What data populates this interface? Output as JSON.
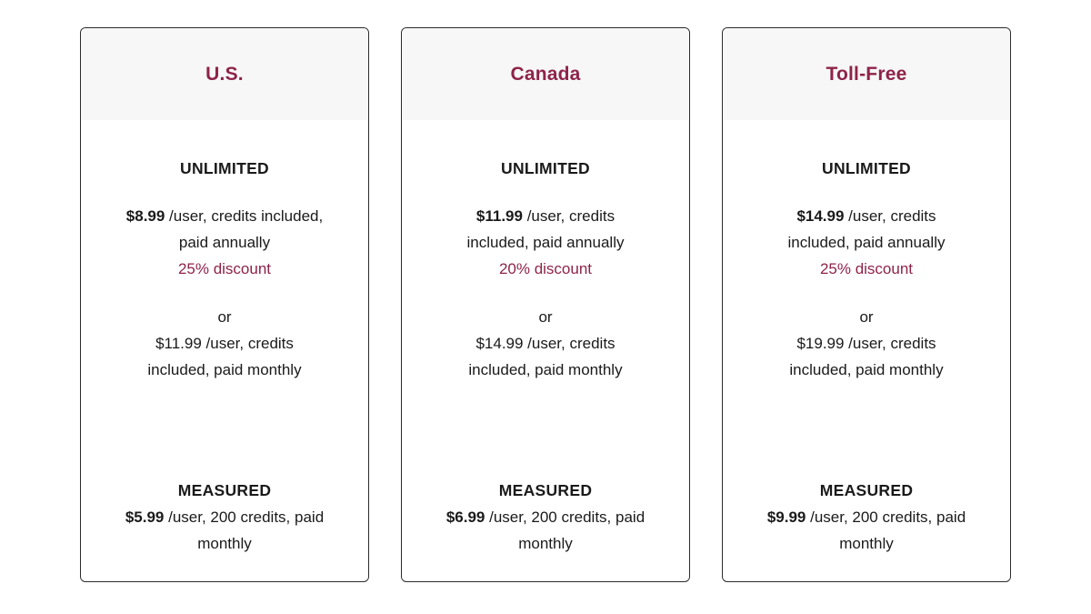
{
  "colors": {
    "accent": "#8e2349",
    "header_bg": "#f7f7f7",
    "card_border": "#2b2b2b",
    "text": "#1a1a1a"
  },
  "cards": [
    {
      "title": "U.S.",
      "unlimited_label": "UNLIMITED",
      "annual_price": "$8.99",
      "annual_text": " /user, credits included,\npaid annually",
      "discount": "25% discount",
      "or_label": "or",
      "monthly_text": "$11.99 /user, credits\nincluded, paid monthly",
      "measured_label": "MEASURED",
      "measured_price": "$5.99",
      "measured_text": " /user, 200 credits, paid\nmonthly"
    },
    {
      "title": "Canada",
      "unlimited_label": "UNLIMITED",
      "annual_price": "$11.99",
      "annual_text": " /user, credits\nincluded, paid annually",
      "discount": "20% discount",
      "or_label": "or",
      "monthly_text": "$14.99 /user, credits\nincluded, paid monthly",
      "measured_label": "MEASURED",
      "measured_price": "$6.99",
      "measured_text": " /user, 200 credits, paid\nmonthly"
    },
    {
      "title": "Toll-Free",
      "unlimited_label": "UNLIMITED",
      "annual_price": "$14.99",
      "annual_text": " /user, credits\nincluded, paid annually",
      "discount": "25% discount",
      "or_label": "or",
      "monthly_text": "$19.99 /user, credits\nincluded, paid monthly",
      "measured_label": "MEASURED",
      "measured_price": "$9.99",
      "measured_text": " /user, 200 credits, paid\nmonthly"
    }
  ]
}
